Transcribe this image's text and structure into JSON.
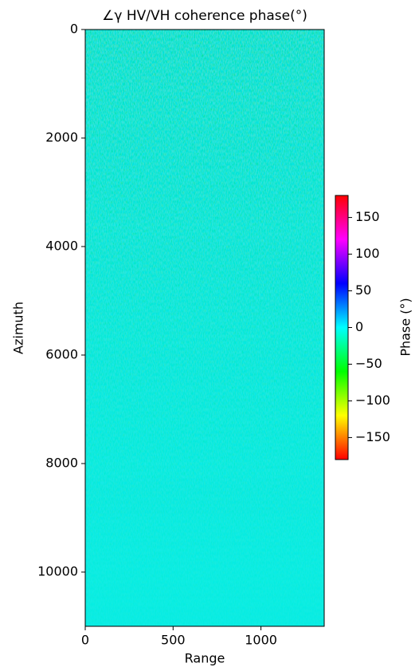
{
  "chart_data": {
    "type": "image",
    "title": "∠γ HV/VH coherence phase(°)",
    "x_label": "Range",
    "y_label": "Azimuth",
    "xlim": [
      0,
      1360
    ],
    "xticks": [
      0,
      500,
      1000
    ],
    "ylim": [
      0,
      11000
    ],
    "yticks": [
      0,
      2000,
      4000,
      6000,
      8000,
      10000
    ],
    "y_inverted": true,
    "colormap": "hsv",
    "colorbar": {
      "label": "Phase (°)",
      "lim": [
        -180,
        180
      ],
      "ticks": [
        {
          "value": -150,
          "label": "−150"
        },
        {
          "value": -100,
          "label": "−100"
        },
        {
          "value": -50,
          "label": "−50"
        },
        0,
        50,
        100,
        150
      ]
    }
  }
}
